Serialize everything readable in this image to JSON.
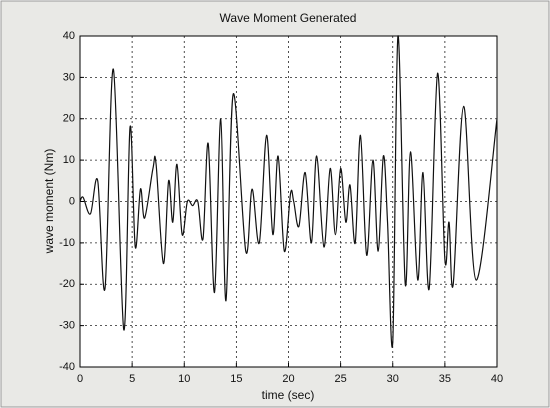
{
  "chart_data": {
    "type": "line",
    "title": "Wave Moment Generated",
    "xlabel": "time (sec)",
    "ylabel": "wave moment (Nm)",
    "x": [
      0,
      0.3,
      1.0,
      1.7,
      2.4,
      3.2,
      4.2,
      4.8,
      5.3,
      5.8,
      6.2,
      7.0,
      7.3,
      8.0,
      8.5,
      8.9,
      9.3,
      9.8,
      10.3,
      10.8,
      11.3,
      11.8,
      12.3,
      12.9,
      13.5,
      14.0,
      14.7,
      15.9,
      16.5,
      17.2,
      17.9,
      18.5,
      19.0,
      19.6,
      20.2,
      20.5,
      21.0,
      21.6,
      22.2,
      22.7,
      23.4,
      24.0,
      24.5,
      25.0,
      25.5,
      25.9,
      26.4,
      26.9,
      27.5,
      28.1,
      28.6,
      29.1,
      29.5,
      30.0,
      30.5,
      31.2,
      31.7,
      32.4,
      32.9,
      33.5,
      34.3,
      35.0,
      35.4,
      35.8,
      36.8,
      38.0,
      40.0
    ],
    "series": [
      {
        "name": "wave moment",
        "color": "#111111",
        "values": [
          0,
          1,
          -3,
          5,
          -21,
          32,
          -31,
          18,
          -11,
          3,
          -4,
          8,
          9,
          -15,
          5,
          -5,
          9,
          -8,
          0,
          -1,
          0,
          -9,
          14,
          -22,
          20,
          -24,
          26,
          -12,
          3,
          -10,
          16,
          -8,
          11,
          -12,
          2,
          0,
          -6,
          7,
          -10,
          11,
          -11,
          8,
          -8,
          8,
          -5,
          4,
          -10,
          16,
          -13,
          10,
          -12,
          11,
          -5,
          -34,
          40,
          -20,
          12,
          -19,
          7,
          -21,
          31,
          -14,
          -5,
          -20,
          23,
          -19,
          20
        ]
      }
    ],
    "xlim": [
      0,
      40
    ],
    "ylim": [
      -40,
      40
    ],
    "xticks": [
      0,
      5,
      10,
      15,
      20,
      25,
      30,
      35,
      40
    ],
    "yticks": [
      -40,
      -30,
      -20,
      -10,
      0,
      10,
      20,
      30,
      40
    ],
    "grid": true
  }
}
